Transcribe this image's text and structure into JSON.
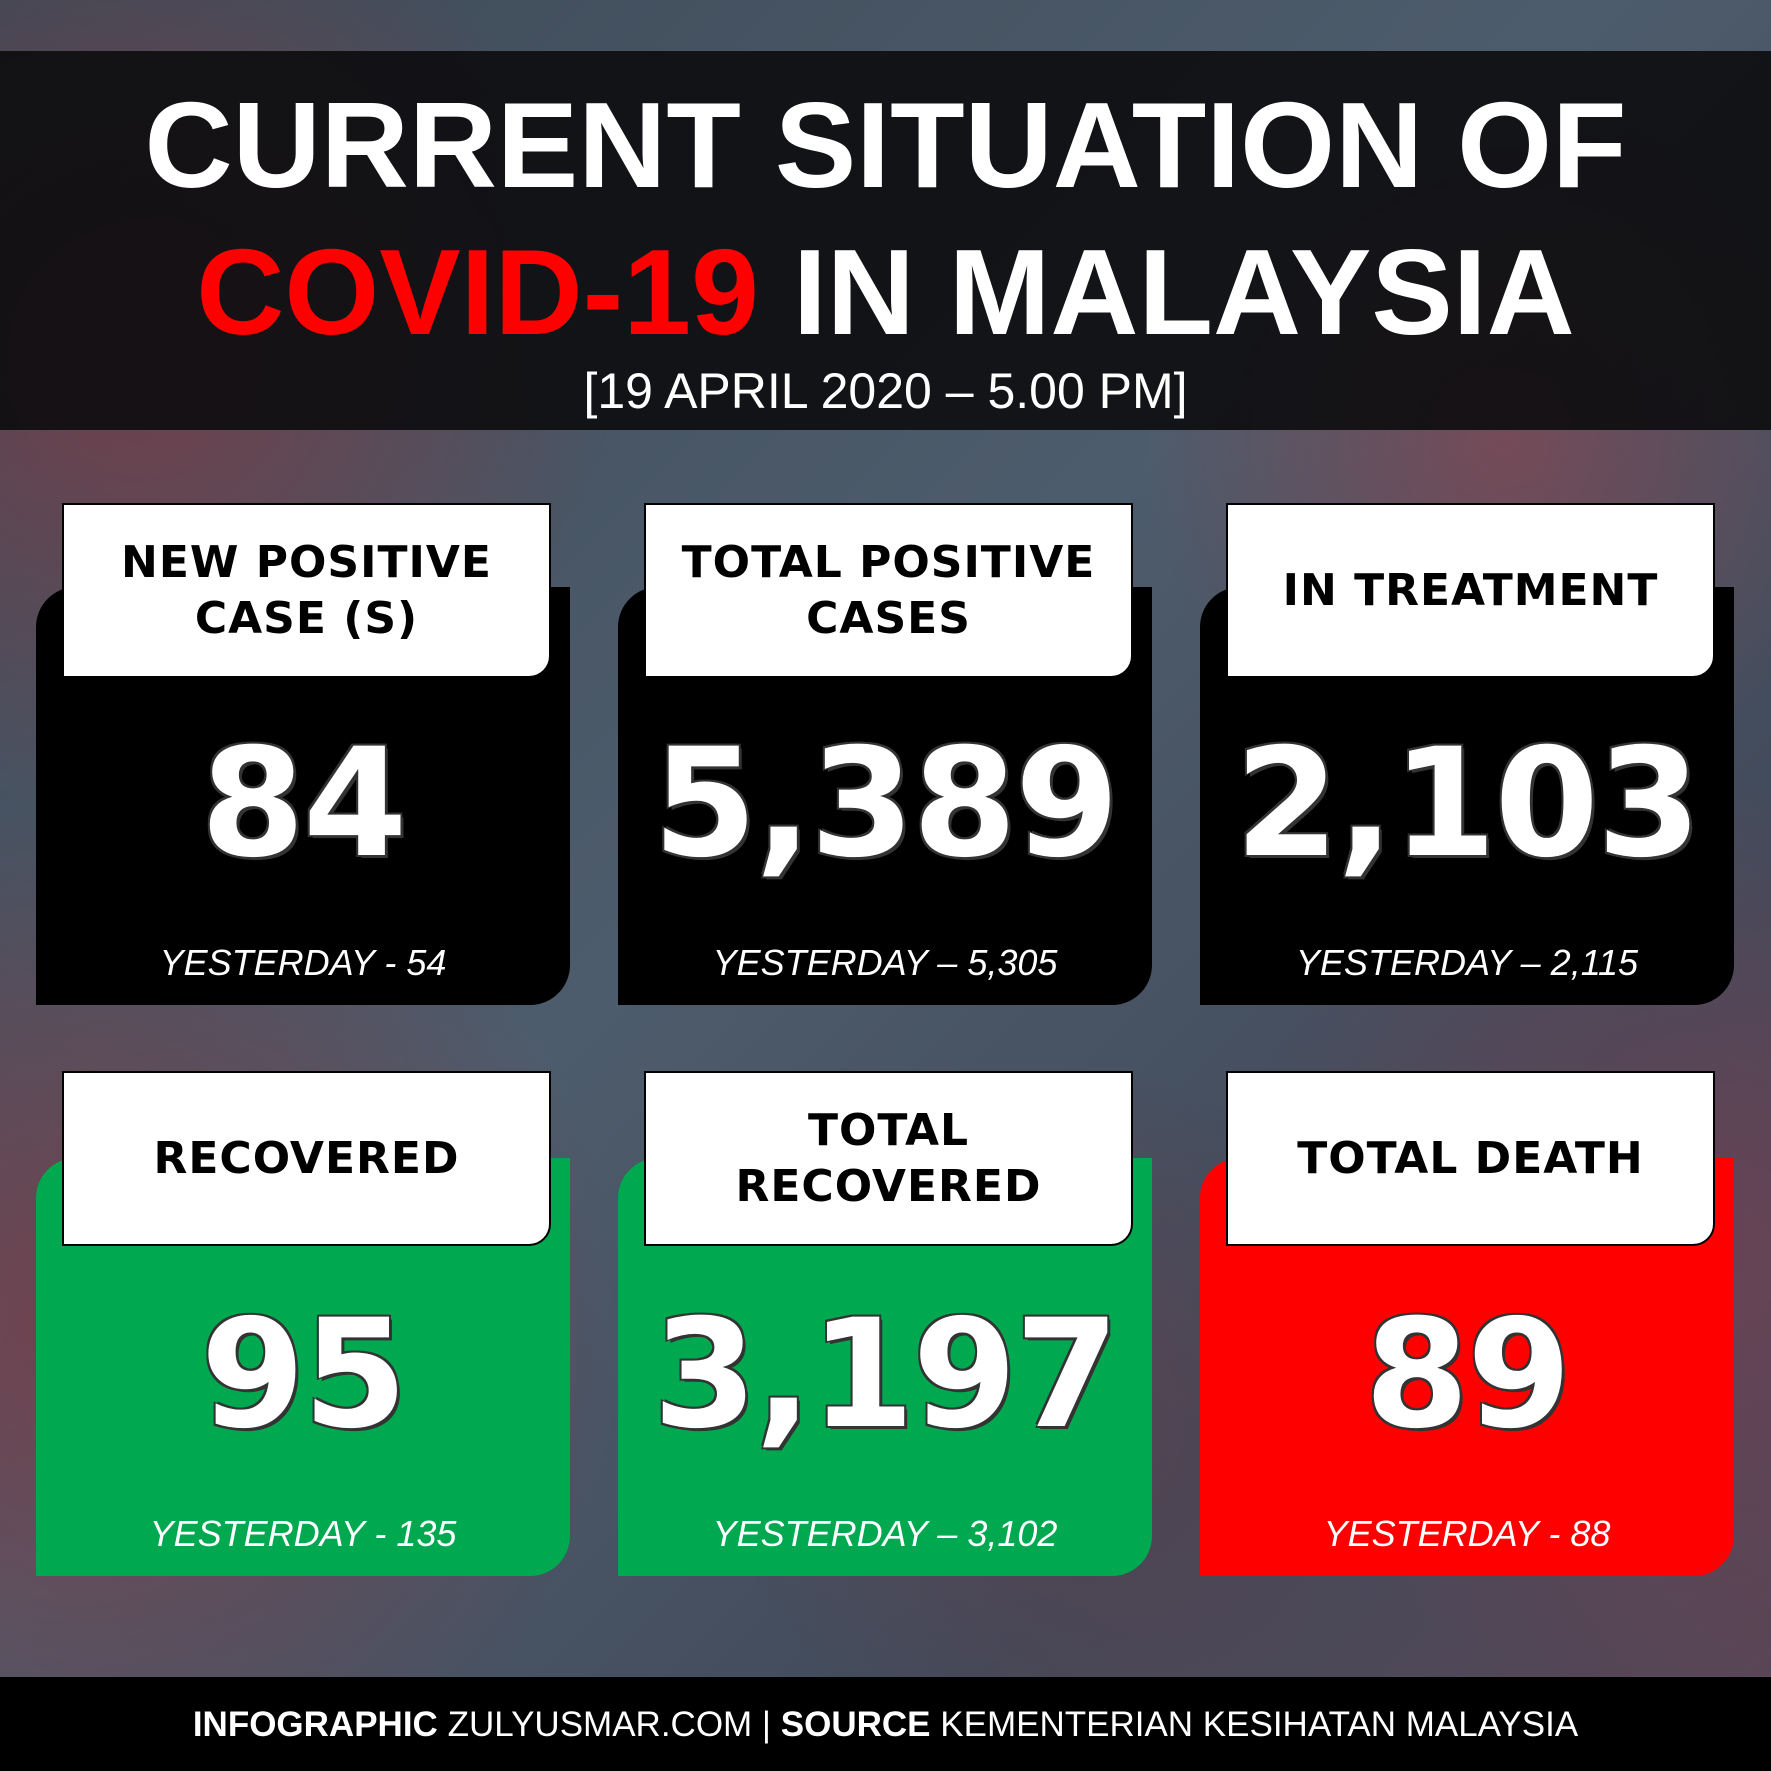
{
  "header": {
    "title_line1": "CURRENT SITUATION OF",
    "title_highlight": "COVID-19",
    "title_rest": "IN MALAYSIA",
    "date": "[19 APRIL 2020 – 5.00 PM]"
  },
  "cards": [
    {
      "label": "NEW POSITIVE CASE (S)",
      "value": "84",
      "yesterday": "YESTERDAY - 54",
      "color": "#000000",
      "value_color": "#ffffff"
    },
    {
      "label": "TOTAL POSITIVE CASES",
      "value": "5,389",
      "yesterday": "YESTERDAY – 5,305",
      "color": "#000000",
      "value_color": "#ffffff"
    },
    {
      "label": "IN TREATMENT",
      "value": "2,103",
      "yesterday": "YESTERDAY – 2,115",
      "color": "#000000",
      "value_color": "#ffffff"
    },
    {
      "label": "RECOVERED",
      "value": "95",
      "yesterday": "YESTERDAY - 135",
      "color": "#00a84f",
      "value_color": "#ffffff"
    },
    {
      "label": "TOTAL RECOVERED",
      "value": "3,197",
      "yesterday": "YESTERDAY – 3,102",
      "color": "#00a84f",
      "value_color": "#ffffff"
    },
    {
      "label": "TOTAL DEATH",
      "value": "89",
      "yesterday": "YESTERDAY - 88",
      "color": "#ff0000",
      "value_color": "#ffffff"
    }
  ],
  "footer": {
    "part1": "INFOGRAPHIC",
    "part2": "ZULYUSMAR.COM |",
    "part3": "SOURCE",
    "part4": "KEMENTERIAN KESIHATAN MALAYSIA"
  }
}
